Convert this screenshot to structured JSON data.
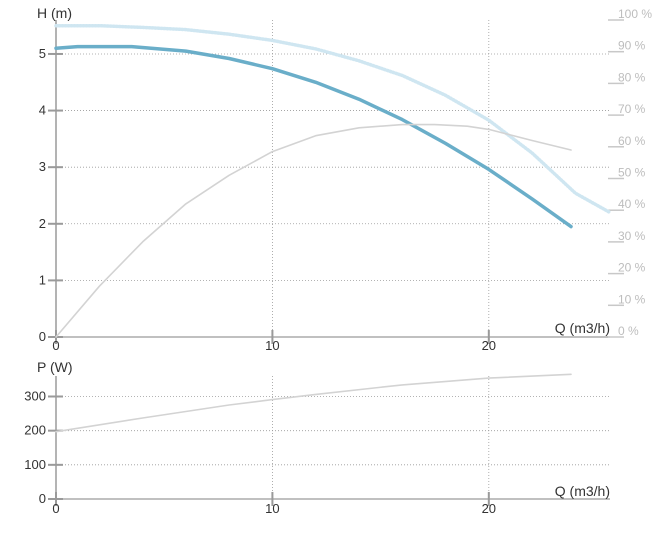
{
  "chart_data": [
    {
      "type": "line",
      "panel": "head",
      "ylabel": "H (m)",
      "xlabel": "Q (m3/h)",
      "xlim": [
        0,
        25.6
      ],
      "ylim": [
        0,
        5.6
      ],
      "xticks": [
        0,
        10,
        20
      ],
      "xtick_labels": [
        "0",
        "10",
        "20"
      ],
      "yticks": [
        0,
        1,
        2,
        3,
        4,
        5
      ],
      "ytick_labels": [
        "0",
        "1",
        "2",
        "3",
        "4",
        "5"
      ],
      "y2lim": [
        0,
        100
      ],
      "y2ticks": [
        0,
        10,
        20,
        30,
        40,
        50,
        60,
        70,
        80,
        90,
        100
      ],
      "y2tick_labels": [
        "0 %",
        "10 %",
        "20 %",
        "30 %",
        "40 %",
        "50 %",
        "60 %",
        "70 %",
        "80 %",
        "90 %",
        "100 %"
      ],
      "grid": true,
      "series": [
        {
          "axis": "left",
          "style": "dotted-light",
          "color": "#cfe6f1",
          "x": [
            0,
            2,
            4,
            6,
            8,
            10,
            12,
            14,
            16,
            18,
            20,
            22,
            24,
            25.6
          ],
          "y": [
            5.5,
            5.5,
            5.47,
            5.43,
            5.35,
            5.24,
            5.09,
            4.88,
            4.62,
            4.27,
            3.83,
            3.25,
            2.54,
            2.2
          ]
        },
        {
          "axis": "left",
          "style": "bold",
          "color": "#6aaec9",
          "x": [
            0,
            1,
            3.5,
            6,
            8,
            10,
            12,
            14,
            16,
            18,
            20,
            22,
            23.8
          ],
          "y": [
            5.1,
            5.13,
            5.13,
            5.05,
            4.92,
            4.74,
            4.5,
            4.2,
            3.84,
            3.42,
            2.96,
            2.44,
            1.95
          ]
        },
        {
          "axis": "right",
          "style": "thin",
          "color": "#d3d3d3",
          "x": [
            0,
            2,
            4,
            6,
            8,
            10,
            12,
            14,
            16,
            17.5,
            19,
            20,
            22,
            23.8
          ],
          "y": [
            0,
            16,
            30,
            42,
            51,
            58.5,
            63.5,
            66,
            67,
            67,
            66.5,
            65.5,
            62,
            59
          ]
        }
      ]
    },
    {
      "type": "line",
      "panel": "power",
      "ylabel": "P (W)",
      "xlabel": "Q (m3/h)",
      "xlim": [
        0,
        25.6
      ],
      "ylim": [
        0,
        360
      ],
      "xticks": [
        0,
        10,
        20
      ],
      "xtick_labels": [
        "0",
        "10",
        "20"
      ],
      "yticks": [
        0,
        100,
        200,
        300
      ],
      "ytick_labels": [
        "0",
        "100",
        "200",
        "300"
      ],
      "grid": true,
      "series": [
        {
          "style": "thin",
          "color": "#d3d3d3",
          "x": [
            0,
            4,
            8,
            10,
            12,
            16,
            20,
            23.8
          ],
          "y": [
            197,
            237,
            275,
            291,
            306,
            334,
            354,
            365
          ]
        }
      ]
    }
  ]
}
